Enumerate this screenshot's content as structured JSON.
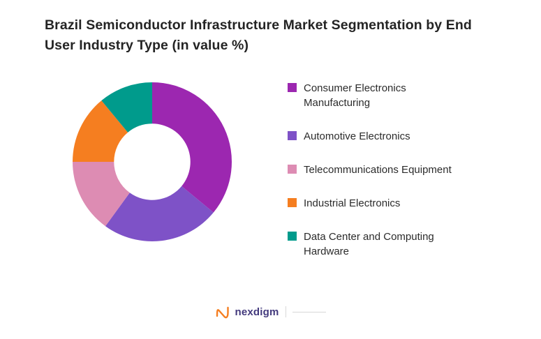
{
  "title": "Brazil Semiconductor Infrastructure Market Segmentation by End User Industry Type (in value %)",
  "chart_data": {
    "type": "pie",
    "subtype": "donut",
    "title": "Brazil Semiconductor Infrastructure Market Segmentation by End User Industry Type (in value %)",
    "unit": "value %",
    "legend_position": "right",
    "values_labeled_on_chart": false,
    "start_angle_deg": 0,
    "direction": "clockwise",
    "inner_radius_ratio": 0.48,
    "series": [
      {
        "id": "consumer-electronics-manufacturing",
        "name": "Consumer Electronics Manufacturing",
        "value": 36,
        "color": "#9C27B0"
      },
      {
        "id": "automotive-electronics",
        "name": "Automotive Electronics",
        "value": 24,
        "color": "#7E52C7"
      },
      {
        "id": "telecommunications-equipment",
        "name": "Telecommunications Equipment",
        "value": 15,
        "color": "#DD8CB3"
      },
      {
        "id": "industrial-electronics",
        "name": "Industrial Electronics",
        "value": 14,
        "color": "#F57E20"
      },
      {
        "id": "data-center-and-computing-hardware",
        "name": "Data Center and Computing Hardware",
        "value": 11,
        "color": "#009B8C"
      }
    ]
  },
  "footer": {
    "brand": "nexdigm",
    "brand_icon": "nexdigm-wave-icon",
    "brand_icon_color": "#F57E20",
    "brand_text_color": "#433a7d"
  }
}
